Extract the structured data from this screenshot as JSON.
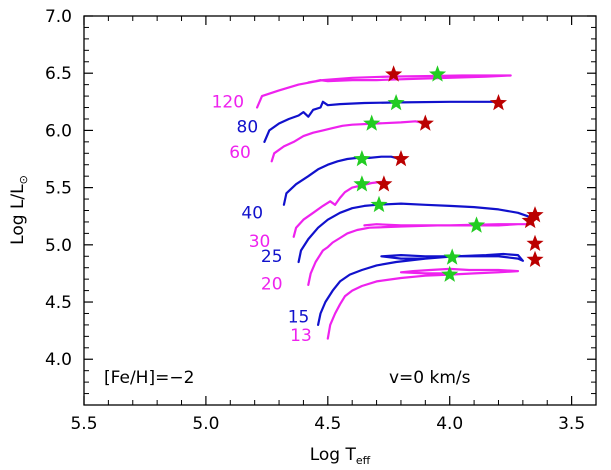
{
  "chart_data": {
    "type": "line",
    "xlabel_main": "Log T",
    "xlabel_sub": "eff",
    "ylabel_main": "Log L/L",
    "ylabel_sub": "⊙",
    "xlim": [
      5.5,
      3.4
    ],
    "ylim": [
      3.6,
      7.0
    ],
    "x_reversed": true,
    "x_ticks": [
      5.5,
      5.0,
      4.5,
      4.0,
      3.5
    ],
    "x_tick_labels": [
      "5.5",
      "5.0",
      "4.5",
      "4.0",
      "3.5"
    ],
    "y_ticks": [
      4.0,
      4.5,
      5.0,
      5.5,
      6.0,
      6.5,
      7.0
    ],
    "y_tick_labels": [
      "4.0",
      "4.5",
      "5.0",
      "5.5",
      "6.0",
      "6.5",
      "7.0"
    ],
    "grid": false,
    "annotations": [
      {
        "text": "[Fe/H]=−2",
        "x": 5.44,
        "y": 3.8
      },
      {
        "text": "v=0 km/s",
        "x": 4.12,
        "y": 3.8
      }
    ],
    "colors": {
      "magenta": "#ee22ee",
      "blue": "#1111cc",
      "green_star": "#22cc22",
      "red_star": "#bb0000"
    },
    "series": [
      {
        "name": "120",
        "color": "magenta",
        "label_x": 4.91,
        "label_y": 6.2,
        "points": [
          [
            4.79,
            6.2
          ],
          [
            4.77,
            6.3
          ],
          [
            4.7,
            6.35
          ],
          [
            4.62,
            6.4
          ],
          [
            4.52,
            6.44
          ],
          [
            4.4,
            6.46
          ],
          [
            4.25,
            6.47
          ],
          [
            4.1,
            6.475
          ],
          [
            3.95,
            6.48
          ],
          [
            3.85,
            6.48
          ],
          [
            3.75,
            6.48
          ],
          [
            3.85,
            6.47
          ],
          [
            4.0,
            6.46
          ],
          [
            4.15,
            6.45
          ],
          [
            4.3,
            6.44
          ],
          [
            4.4,
            6.44
          ],
          [
            4.5,
            6.43
          ],
          [
            4.53,
            6.44
          ],
          [
            4.55,
            6.43
          ],
          [
            4.58,
            6.42
          ]
        ],
        "tams": [
          4.05,
          6.49
        ],
        "end": [
          4.23,
          6.49
        ]
      },
      {
        "name": "80",
        "color": "blue",
        "label_x": 4.83,
        "label_y": 5.98,
        "points": [
          [
            4.76,
            5.9
          ],
          [
            4.74,
            6.0
          ],
          [
            4.7,
            6.06
          ],
          [
            4.66,
            6.1
          ],
          [
            4.62,
            6.13
          ],
          [
            4.6,
            6.16
          ],
          [
            4.58,
            6.12
          ],
          [
            4.56,
            6.18
          ],
          [
            4.53,
            6.2
          ],
          [
            4.52,
            6.25
          ],
          [
            4.5,
            6.22
          ],
          [
            4.45,
            6.23
          ],
          [
            4.35,
            6.24
          ],
          [
            4.2,
            6.245
          ],
          [
            4.0,
            6.25
          ],
          [
            3.85,
            6.25
          ],
          [
            3.8,
            6.25
          ]
        ],
        "tams": [
          4.22,
          6.24
        ],
        "end": [
          3.8,
          6.24
        ]
      },
      {
        "name": "60",
        "color": "magenta",
        "label_x": 4.86,
        "label_y": 5.76,
        "points": [
          [
            4.73,
            5.73
          ],
          [
            4.72,
            5.8
          ],
          [
            4.68,
            5.86
          ],
          [
            4.64,
            5.9
          ],
          [
            4.6,
            5.95
          ],
          [
            4.56,
            5.98
          ],
          [
            4.52,
            6.0
          ],
          [
            4.48,
            6.02
          ],
          [
            4.44,
            6.04
          ],
          [
            4.4,
            6.05
          ],
          [
            4.3,
            6.06
          ],
          [
            4.2,
            6.07
          ],
          [
            4.14,
            6.08
          ],
          [
            4.12,
            6.07
          ]
        ],
        "tams": [
          4.32,
          6.06
        ],
        "end": [
          4.1,
          6.06
        ]
      },
      {
        "name": "40",
        "color": "blue",
        "label_x": 4.81,
        "label_y": 5.23,
        "points": [
          [
            4.68,
            5.35
          ],
          [
            4.67,
            5.45
          ],
          [
            4.63,
            5.53
          ],
          [
            4.58,
            5.6
          ],
          [
            4.54,
            5.66
          ],
          [
            4.5,
            5.7
          ],
          [
            4.46,
            5.73
          ],
          [
            4.42,
            5.75
          ],
          [
            4.38,
            5.76
          ],
          [
            4.33,
            5.76
          ],
          [
            4.28,
            5.77
          ],
          [
            4.24,
            5.77
          ],
          [
            4.22,
            5.76
          ]
        ],
        "tams": [
          4.36,
          5.75
        ],
        "end": [
          4.2,
          5.75
        ]
      },
      {
        "name": "30",
        "color": "magenta",
        "label_x": 4.78,
        "label_y": 4.98,
        "points": [
          [
            4.64,
            5.07
          ],
          [
            4.63,
            5.15
          ],
          [
            4.6,
            5.22
          ],
          [
            4.56,
            5.28
          ],
          [
            4.52,
            5.34
          ],
          [
            4.49,
            5.38
          ],
          [
            4.47,
            5.35
          ],
          [
            4.45,
            5.41
          ],
          [
            4.43,
            5.46
          ],
          [
            4.4,
            5.5
          ],
          [
            4.36,
            5.52
          ],
          [
            4.32,
            5.54
          ],
          [
            4.28,
            5.55
          ],
          [
            4.26,
            5.55
          ]
        ],
        "tams": [
          4.36,
          5.53
        ],
        "end": [
          4.27,
          5.53
        ]
      },
      {
        "name": "25",
        "color": "blue",
        "label_x": 4.73,
        "label_y": 4.85,
        "points": [
          [
            4.62,
            4.85
          ],
          [
            4.61,
            4.95
          ],
          [
            4.58,
            5.05
          ],
          [
            4.54,
            5.15
          ],
          [
            4.5,
            5.22
          ],
          [
            4.45,
            5.28
          ],
          [
            4.4,
            5.32
          ],
          [
            4.35,
            5.34
          ],
          [
            4.3,
            5.35
          ],
          [
            4.2,
            5.36
          ],
          [
            4.1,
            5.35
          ],
          [
            4.0,
            5.34
          ],
          [
            3.9,
            5.33
          ],
          [
            3.8,
            5.31
          ],
          [
            3.72,
            5.28
          ],
          [
            3.68,
            5.25
          ],
          [
            3.66,
            5.22
          ]
        ],
        "tams": [
          4.29,
          5.35
        ],
        "end": [
          3.67,
          5.21
        ]
      },
      {
        "name": "20",
        "color": "magenta",
        "label_x": 4.73,
        "label_y": 4.61,
        "points": [
          [
            4.58,
            4.65
          ],
          [
            4.57,
            4.75
          ],
          [
            4.55,
            4.85
          ],
          [
            4.52,
            4.95
          ],
          [
            4.5,
            4.98
          ],
          [
            4.48,
            5.02
          ],
          [
            4.45,
            5.06
          ],
          [
            4.42,
            5.1
          ],
          [
            4.38,
            5.13
          ],
          [
            4.33,
            5.15
          ],
          [
            4.2,
            5.16
          ],
          [
            4.05,
            5.17
          ],
          [
            3.9,
            5.17
          ],
          [
            3.8,
            5.17
          ],
          [
            3.72,
            5.18
          ],
          [
            3.66,
            5.18
          ],
          [
            3.8,
            5.18
          ],
          [
            4.0,
            5.17
          ],
          [
            4.2,
            5.17
          ],
          [
            4.3,
            5.18
          ],
          [
            4.35,
            5.17
          ]
        ],
        "tams": [
          3.89,
          5.17
        ],
        "end": [
          3.65,
          5.26
        ]
      },
      {
        "name": "15",
        "color": "blue",
        "label_x": 4.62,
        "label_y": 4.32,
        "points": [
          [
            4.54,
            4.3
          ],
          [
            4.53,
            4.4
          ],
          [
            4.51,
            4.5
          ],
          [
            4.48,
            4.6
          ],
          [
            4.45,
            4.68
          ],
          [
            4.41,
            4.74
          ],
          [
            4.36,
            4.78
          ],
          [
            4.3,
            4.82
          ],
          [
            4.22,
            4.85
          ],
          [
            4.1,
            4.88
          ],
          [
            3.98,
            4.9
          ],
          [
            3.85,
            4.91
          ],
          [
            3.78,
            4.92
          ],
          [
            3.72,
            4.91
          ],
          [
            3.7,
            4.86
          ],
          [
            3.72,
            4.88
          ],
          [
            3.8,
            4.9
          ],
          [
            3.95,
            4.9
          ],
          [
            4.1,
            4.9
          ],
          [
            4.2,
            4.91
          ],
          [
            4.28,
            4.9
          ],
          [
            4.2,
            4.88
          ],
          [
            4.1,
            4.88
          ]
        ],
        "tams": [
          3.99,
          4.89
        ],
        "end": [
          3.65,
          5.01
        ]
      },
      {
        "name": "13",
        "color": "magenta",
        "label_x": 4.61,
        "label_y": 4.16,
        "points": [
          [
            4.5,
            4.18
          ],
          [
            4.49,
            4.3
          ],
          [
            4.47,
            4.4
          ],
          [
            4.45,
            4.48
          ],
          [
            4.43,
            4.55
          ],
          [
            4.4,
            4.6
          ],
          [
            4.36,
            4.64
          ],
          [
            4.3,
            4.68
          ],
          [
            4.2,
            4.71
          ],
          [
            4.1,
            4.73
          ],
          [
            4.0,
            4.74
          ],
          [
            3.9,
            4.75
          ],
          [
            3.8,
            4.76
          ],
          [
            3.72,
            4.77
          ],
          [
            3.8,
            4.78
          ],
          [
            3.92,
            4.78
          ],
          [
            4.0,
            4.79
          ],
          [
            4.08,
            4.78
          ],
          [
            4.15,
            4.77
          ],
          [
            4.2,
            4.76
          ],
          [
            4.1,
            4.75
          ],
          [
            4.0,
            4.75
          ]
        ],
        "tams": [
          4.0,
          4.74
        ],
        "end": [
          3.65,
          4.87
        ]
      }
    ]
  }
}
